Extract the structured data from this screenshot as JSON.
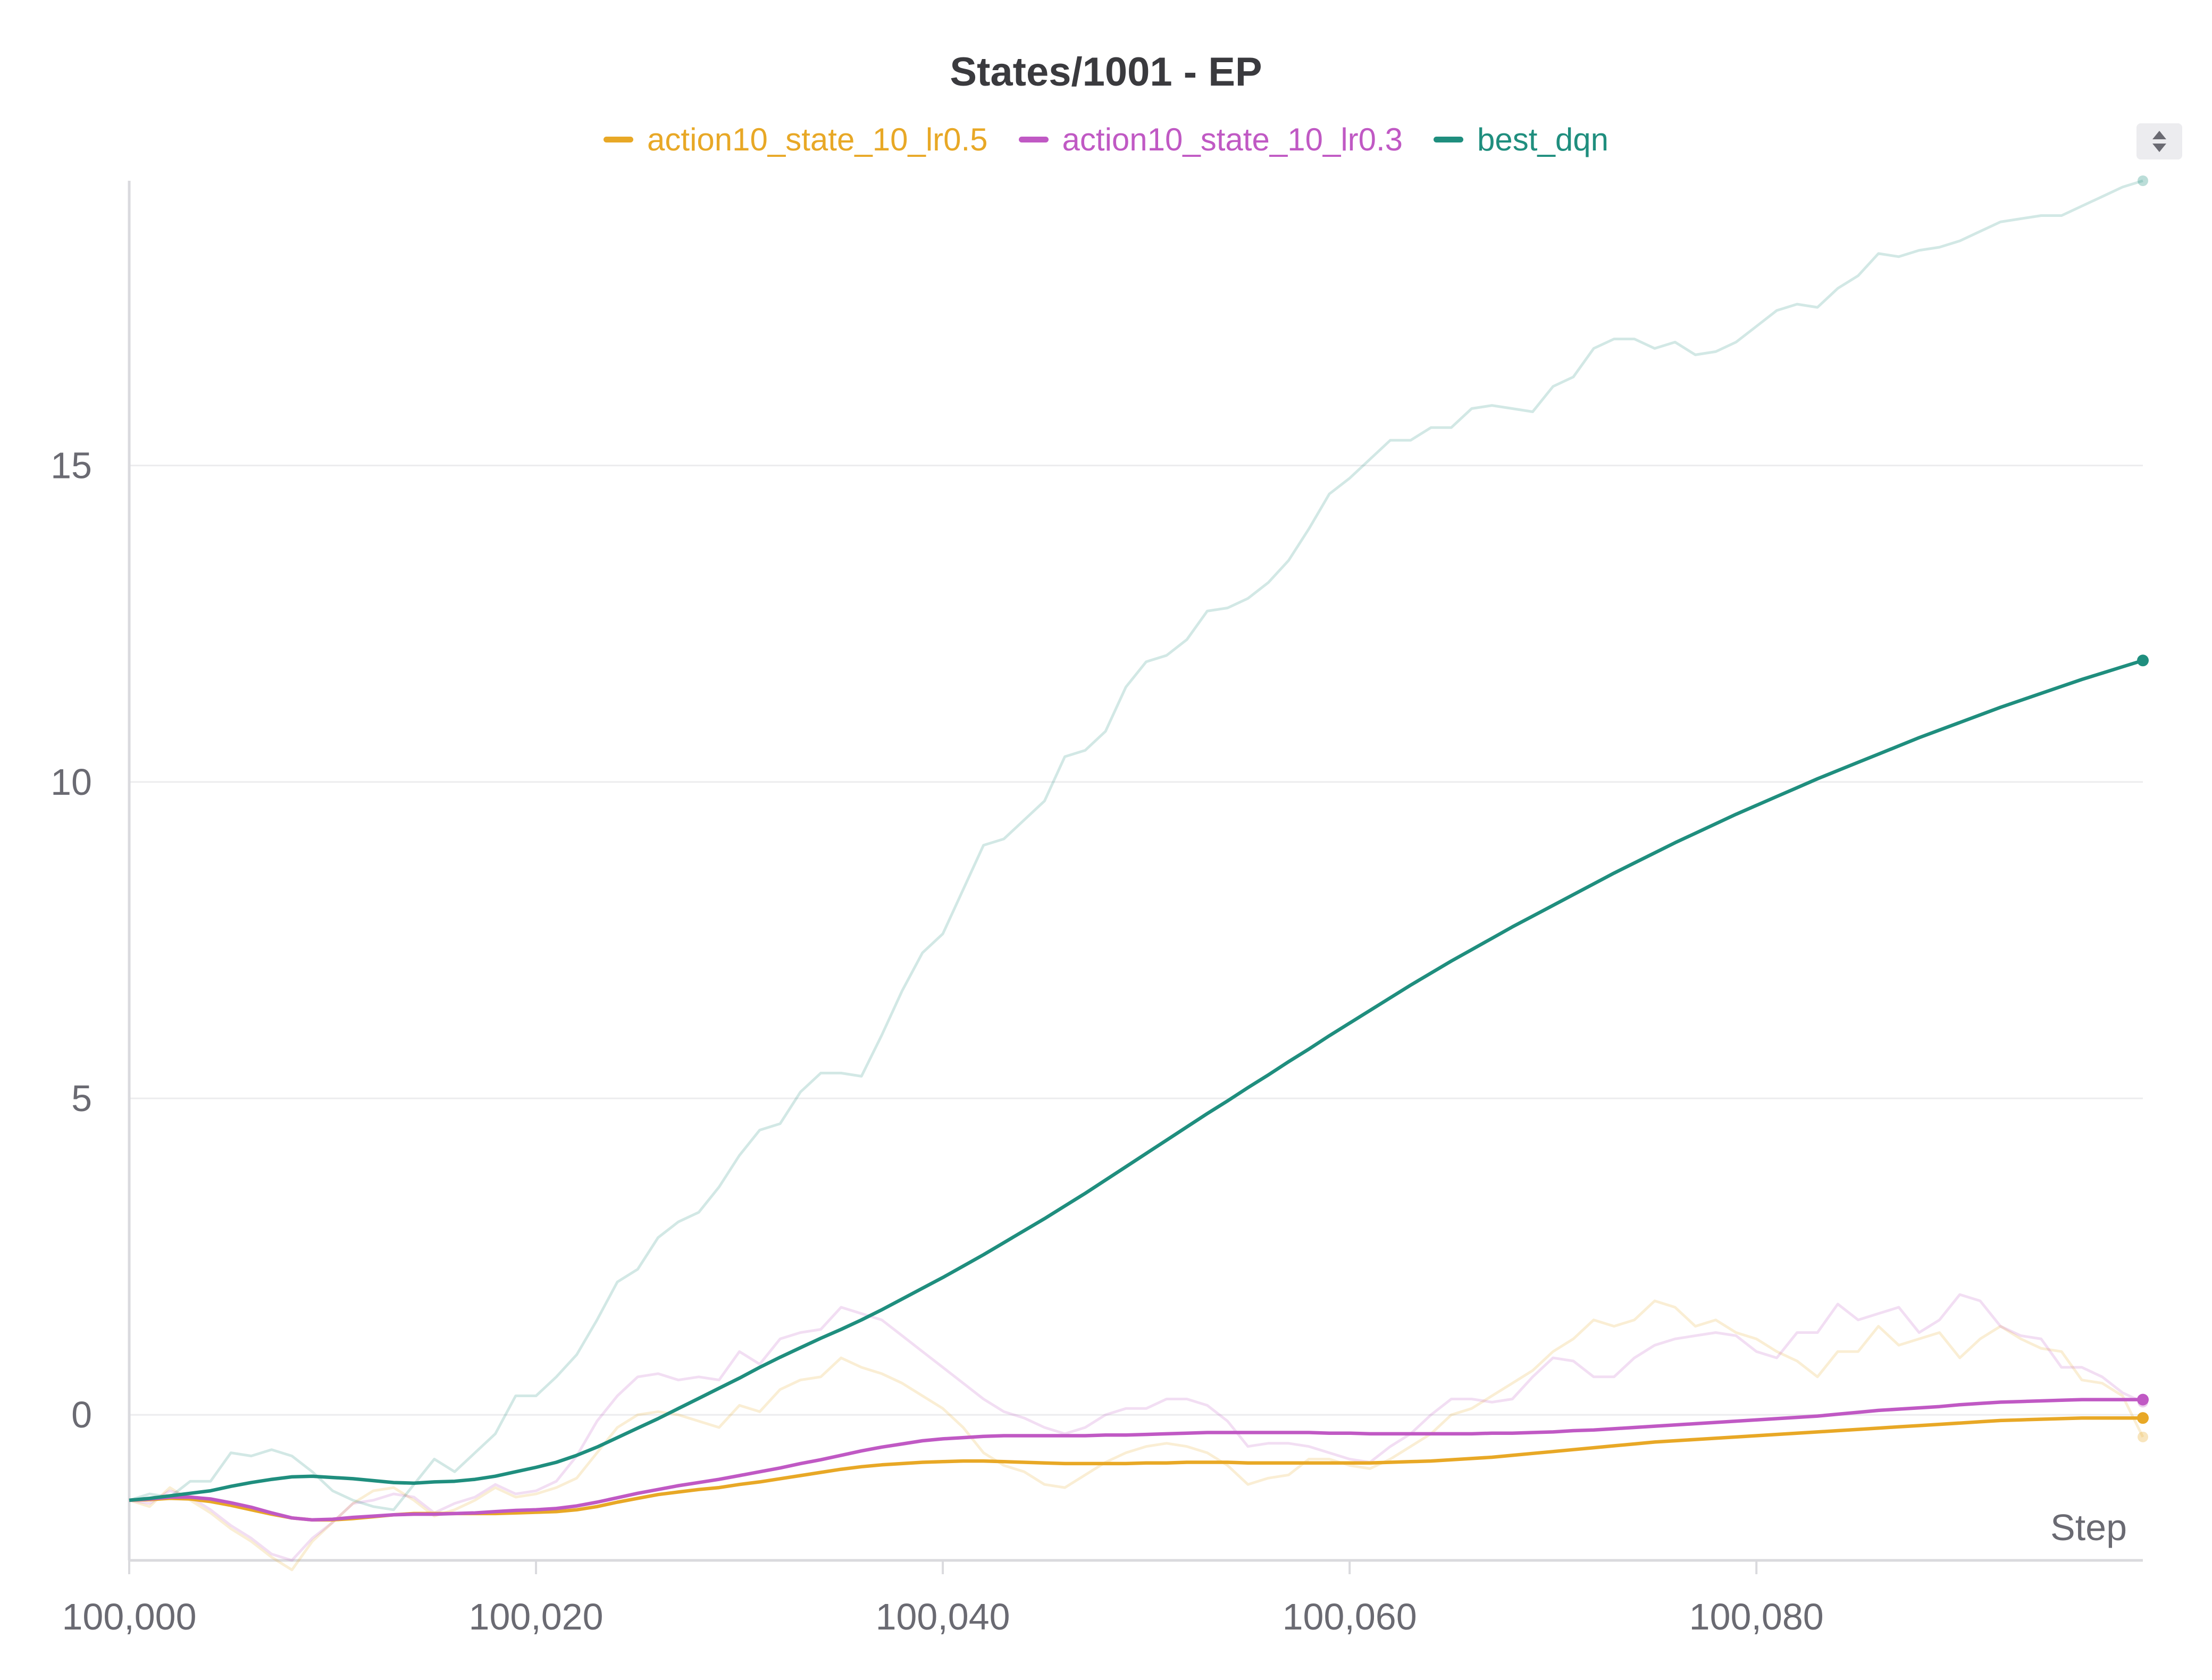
{
  "chart_data": {
    "type": "line",
    "title": "States/1001 - EP",
    "xlabel": "Step",
    "ylabel": "",
    "xlim": [
      100000,
      99
    ],
    "ylim": [
      -2.3,
      19.5
    ],
    "x_ticks": [
      100000,
      100020,
      100040,
      100060,
      100080
    ],
    "x_tick_labels": [
      "100,000",
      "100,020",
      "100,040",
      "100,060",
      "100,080"
    ],
    "y_ticks": [
      0,
      5,
      10,
      15
    ],
    "y_tick_labels": [
      "0",
      "5",
      "10",
      "15"
    ],
    "grid": true,
    "legend_position": "top-center",
    "x": [
      100000,
      100001,
      100002,
      100003,
      100004,
      100005,
      100006,
      100007,
      100008,
      100009,
      100010,
      100011,
      100012,
      100013,
      100014,
      100015,
      100016,
      100017,
      100018,
      100019,
      100020,
      100021,
      100022,
      100023,
      100024,
      100025,
      100026,
      100027,
      100028,
      100029,
      100030,
      100031,
      100032,
      100033,
      100034,
      100035,
      100036,
      100037,
      100038,
      100039,
      100040,
      100041,
      100042,
      100043,
      100044,
      100045,
      100046,
      100047,
      100048,
      100049,
      100050,
      100051,
      100052,
      100053,
      100054,
      100055,
      100056,
      100057,
      100058,
      100059,
      100060,
      100061,
      100062,
      100063,
      100064,
      100065,
      100066,
      100067,
      100068,
      100069,
      100070,
      100071,
      100072,
      100073,
      100074,
      100075,
      100076,
      100077,
      100078,
      100079,
      100080,
      100081,
      100082,
      100083,
      100084,
      100085,
      100086,
      100087,
      100088,
      100089,
      100090,
      100091,
      100092,
      100093,
      100094,
      100095,
      100096,
      100097,
      100098,
      100099
    ],
    "series": [
      {
        "name": "action10_state_10_lr0.5",
        "color": "#e8a826",
        "raw": [
          -1.35,
          -1.45,
          -1.15,
          -1.35,
          -1.55,
          -1.8,
          -2.0,
          -2.25,
          -2.45,
          -2.0,
          -1.7,
          -1.4,
          -1.2,
          -1.15,
          -1.35,
          -1.6,
          -1.5,
          -1.35,
          -1.15,
          -1.3,
          -1.25,
          -1.15,
          -1.0,
          -0.6,
          -0.2,
          0.0,
          0.05,
          0.0,
          -0.1,
          -0.2,
          0.15,
          0.05,
          0.4,
          0.55,
          0.6,
          0.9,
          0.75,
          0.65,
          0.5,
          0.3,
          0.1,
          -0.2,
          -0.6,
          -0.8,
          -0.9,
          -1.1,
          -1.15,
          -0.95,
          -0.75,
          -0.6,
          -0.5,
          -0.45,
          -0.5,
          -0.6,
          -0.8,
          -1.1,
          -1.0,
          -0.95,
          -0.7,
          -0.7,
          -0.8,
          -0.85,
          -0.7,
          -0.5,
          -0.3,
          0.0,
          0.1,
          0.3,
          0.5,
          0.7,
          1.0,
          1.2,
          1.5,
          1.4,
          1.5,
          1.8,
          1.7,
          1.4,
          1.5,
          1.3,
          1.2,
          1.0,
          0.85,
          0.6,
          1.0,
          1.0,
          1.4,
          1.1,
          1.2,
          1.3,
          0.9,
          1.2,
          1.4,
          1.2,
          1.05,
          1.0,
          0.55,
          0.5,
          0.3,
          -0.35
        ],
        "smoothed": [
          -1.35,
          -1.34,
          -1.32,
          -1.33,
          -1.37,
          -1.43,
          -1.5,
          -1.57,
          -1.63,
          -1.66,
          -1.66,
          -1.64,
          -1.61,
          -1.58,
          -1.56,
          -1.56,
          -1.56,
          -1.56,
          -1.56,
          -1.55,
          -1.54,
          -1.53,
          -1.5,
          -1.45,
          -1.38,
          -1.32,
          -1.26,
          -1.22,
          -1.18,
          -1.15,
          -1.1,
          -1.06,
          -1.01,
          -0.96,
          -0.91,
          -0.86,
          -0.82,
          -0.79,
          -0.77,
          -0.75,
          -0.74,
          -0.73,
          -0.73,
          -0.74,
          -0.75,
          -0.76,
          -0.77,
          -0.77,
          -0.77,
          -0.77,
          -0.76,
          -0.76,
          -0.75,
          -0.75,
          -0.75,
          -0.76,
          -0.76,
          -0.76,
          -0.76,
          -0.76,
          -0.76,
          -0.76,
          -0.75,
          -0.74,
          -0.73,
          -0.71,
          -0.69,
          -0.67,
          -0.64,
          -0.61,
          -0.58,
          -0.55,
          -0.52,
          -0.49,
          -0.46,
          -0.43,
          -0.41,
          -0.39,
          -0.37,
          -0.35,
          -0.33,
          -0.31,
          -0.29,
          -0.27,
          -0.25,
          -0.23,
          -0.21,
          -0.19,
          -0.17,
          -0.15,
          -0.13,
          -0.11,
          -0.09,
          -0.08,
          -0.07,
          -0.06,
          -0.05,
          -0.05,
          -0.05,
          -0.05
        ]
      },
      {
        "name": "action10_state_10_lr0.3",
        "color": "#c059c4",
        "raw": [
          -1.35,
          -1.4,
          -1.2,
          -1.3,
          -1.5,
          -1.75,
          -1.95,
          -2.2,
          -2.3,
          -1.95,
          -1.7,
          -1.4,
          -1.35,
          -1.25,
          -1.3,
          -1.55,
          -1.4,
          -1.3,
          -1.1,
          -1.25,
          -1.2,
          -1.05,
          -0.65,
          -0.1,
          0.3,
          0.6,
          0.65,
          0.55,
          0.6,
          0.55,
          1.0,
          0.8,
          1.2,
          1.3,
          1.35,
          1.7,
          1.6,
          1.5,
          1.25,
          1.0,
          0.75,
          0.5,
          0.25,
          0.05,
          -0.05,
          -0.2,
          -0.3,
          -0.2,
          0.0,
          0.1,
          0.1,
          0.25,
          0.25,
          0.15,
          -0.1,
          -0.5,
          -0.45,
          -0.45,
          -0.5,
          -0.6,
          -0.7,
          -0.75,
          -0.5,
          -0.3,
          0.0,
          0.25,
          0.25,
          0.2,
          0.25,
          0.6,
          0.9,
          0.85,
          0.6,
          0.6,
          0.9,
          1.1,
          1.2,
          1.25,
          1.3,
          1.25,
          1.0,
          0.9,
          1.3,
          1.3,
          1.75,
          1.5,
          1.6,
          1.7,
          1.3,
          1.5,
          1.9,
          1.8,
          1.4,
          1.25,
          1.2,
          0.75,
          0.75,
          0.6,
          0.35,
          0.2
        ],
        "smoothed": [
          -1.35,
          -1.33,
          -1.3,
          -1.3,
          -1.33,
          -1.39,
          -1.46,
          -1.55,
          -1.63,
          -1.66,
          -1.65,
          -1.62,
          -1.6,
          -1.58,
          -1.57,
          -1.57,
          -1.56,
          -1.55,
          -1.53,
          -1.51,
          -1.5,
          -1.48,
          -1.44,
          -1.38,
          -1.31,
          -1.24,
          -1.18,
          -1.12,
          -1.07,
          -1.02,
          -0.96,
          -0.9,
          -0.84,
          -0.77,
          -0.71,
          -0.64,
          -0.57,
          -0.51,
          -0.46,
          -0.41,
          -0.38,
          -0.36,
          -0.34,
          -0.33,
          -0.33,
          -0.33,
          -0.33,
          -0.33,
          -0.32,
          -0.32,
          -0.31,
          -0.3,
          -0.29,
          -0.28,
          -0.28,
          -0.28,
          -0.28,
          -0.28,
          -0.28,
          -0.29,
          -0.29,
          -0.3,
          -0.3,
          -0.3,
          -0.3,
          -0.3,
          -0.3,
          -0.29,
          -0.29,
          -0.28,
          -0.27,
          -0.25,
          -0.24,
          -0.22,
          -0.2,
          -0.18,
          -0.16,
          -0.14,
          -0.12,
          -0.1,
          -0.08,
          -0.06,
          -0.04,
          -0.02,
          0.01,
          0.04,
          0.07,
          0.09,
          0.11,
          0.13,
          0.16,
          0.18,
          0.2,
          0.21,
          0.22,
          0.23,
          0.24,
          0.24,
          0.24,
          0.24
        ]
      },
      {
        "name": "best_dqn",
        "color": "#1f8e7e",
        "raw": [
          -1.35,
          -1.25,
          -1.3,
          -1.05,
          -1.05,
          -0.6,
          -0.65,
          -0.55,
          -0.65,
          -0.9,
          -1.2,
          -1.35,
          -1.45,
          -1.5,
          -1.1,
          -0.7,
          -0.9,
          -0.6,
          -0.3,
          0.3,
          0.3,
          0.6,
          0.95,
          1.5,
          2.1,
          2.3,
          2.8,
          3.05,
          3.2,
          3.6,
          4.1,
          4.5,
          4.6,
          5.1,
          5.4,
          5.4,
          5.35,
          6.0,
          6.7,
          7.3,
          7.6,
          8.3,
          9.0,
          9.1,
          9.4,
          9.7,
          10.4,
          10.5,
          10.8,
          11.5,
          11.9,
          12.0,
          12.25,
          12.7,
          12.75,
          12.9,
          13.15,
          13.5,
          14.0,
          14.55,
          14.8,
          15.1,
          15.4,
          15.4,
          15.6,
          15.6,
          15.9,
          15.95,
          15.9,
          15.85,
          16.25,
          16.4,
          16.85,
          17.0,
          17.0,
          16.85,
          16.95,
          16.75,
          16.8,
          16.95,
          17.2,
          17.45,
          17.55,
          17.5,
          17.8,
          18.0,
          18.35,
          18.3,
          18.4,
          18.45,
          18.55,
          18.7,
          18.85,
          18.9,
          18.95,
          18.95,
          19.1,
          19.25,
          19.4,
          19.5
        ],
        "smoothed": [
          -1.35,
          -1.32,
          -1.28,
          -1.24,
          -1.2,
          -1.13,
          -1.07,
          -1.02,
          -0.98,
          -0.97,
          -0.99,
          -1.01,
          -1.04,
          -1.07,
          -1.08,
          -1.06,
          -1.05,
          -1.02,
          -0.97,
          -0.9,
          -0.83,
          -0.75,
          -0.64,
          -0.51,
          -0.36,
          -0.21,
          -0.06,
          0.1,
          0.26,
          0.42,
          0.58,
          0.75,
          0.91,
          1.06,
          1.21,
          1.35,
          1.5,
          1.66,
          1.83,
          2.0,
          2.17,
          2.35,
          2.53,
          2.72,
          2.91,
          3.1,
          3.3,
          3.5,
          3.71,
          3.92,
          4.13,
          4.34,
          4.55,
          4.76,
          4.96,
          5.17,
          5.37,
          5.58,
          5.78,
          5.99,
          6.19,
          6.39,
          6.59,
          6.79,
          6.98,
          7.17,
          7.35,
          7.53,
          7.71,
          7.88,
          8.05,
          8.22,
          8.39,
          8.56,
          8.72,
          8.88,
          9.04,
          9.19,
          9.34,
          9.49,
          9.63,
          9.77,
          9.91,
          10.05,
          10.18,
          10.31,
          10.44,
          10.57,
          10.7,
          10.82,
          10.94,
          11.06,
          11.18,
          11.29,
          11.4,
          11.51,
          11.62,
          11.72,
          11.82,
          11.92
        ]
      }
    ]
  }
}
